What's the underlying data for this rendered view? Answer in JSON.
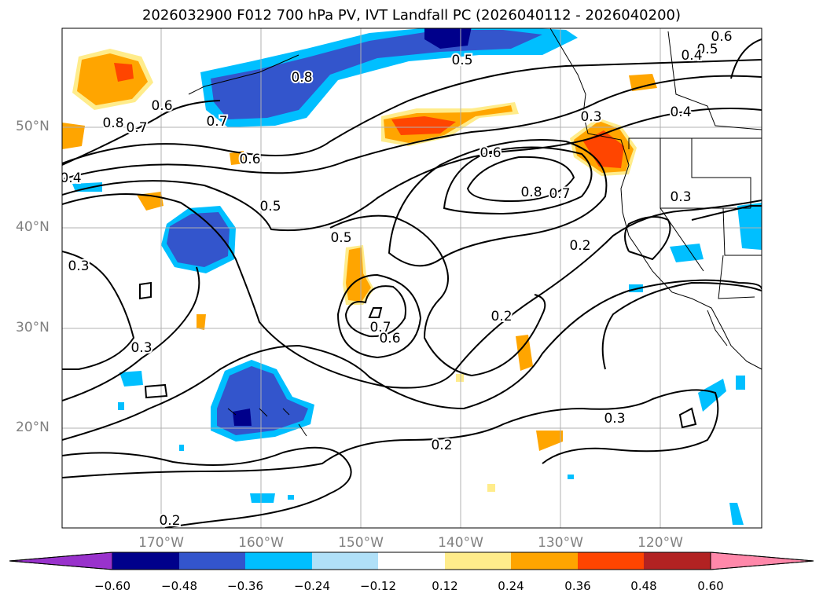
{
  "title": "2026032900 F012 700 hPa PV, IVT Landfall PC (2026040112 - 2026040200)",
  "lat_labels": [
    "50°N",
    "40°N",
    "30°N",
    "20°N"
  ],
  "lon_labels": [
    "170°W",
    "160°W",
    "150°W",
    "140°W",
    "130°W",
    "120°W"
  ],
  "contour_labels": [
    "0.6",
    "0.5",
    "0.4",
    "0.5",
    "0.8",
    "0.6",
    "0.7",
    "0.8",
    "0.7",
    "0.4",
    "0.3",
    "0.6",
    "0.4",
    "0.5",
    "0.6",
    "0.8",
    "0.7",
    "0.3",
    "0.2",
    "0.5",
    "0.3",
    "0.7",
    "0.6",
    "0.2",
    "0.3",
    "0.3",
    "0.2",
    "0.2"
  ],
  "colorbar": {
    "ticks": [
      "−0.60",
      "−0.48",
      "−0.36",
      "−0.24",
      "−0.12",
      "0.12",
      "0.24",
      "0.36",
      "0.48",
      "0.60"
    ],
    "colors": [
      "#9932cc",
      "#00008b",
      "#3355cc",
      "#00bfff",
      "#b0e0f8",
      "#ffffff",
      "#ffec8b",
      "#ffa500",
      "#ff4500",
      "#b22222",
      "#ff88aa"
    ]
  }
}
